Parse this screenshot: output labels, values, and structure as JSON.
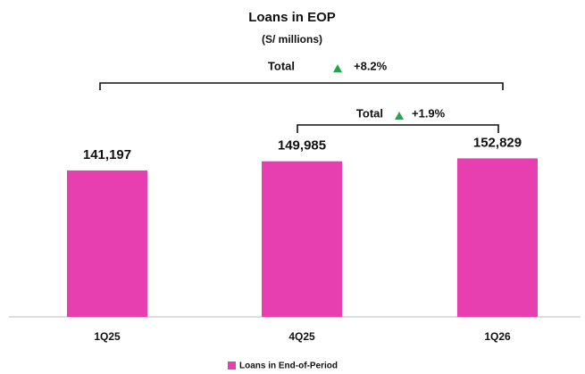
{
  "chart_data": {
    "type": "bar",
    "title": "Loans in EOP",
    "subtitle": "(S/ millions)",
    "categories": [
      "1Q25",
      "4Q25",
      "1Q26"
    ],
    "series": [
      {
        "name": "Loans in End-of-Period",
        "color": "#e83fb0",
        "values": [
          141197,
          149985,
          152829
        ]
      }
    ],
    "value_labels": [
      "141,197",
      "149,985",
      "152,829"
    ],
    "annotations": [
      {
        "label": "Total",
        "change": "+8.2%"
      },
      {
        "label": "Total",
        "change": "+1.9%"
      }
    ]
  }
}
